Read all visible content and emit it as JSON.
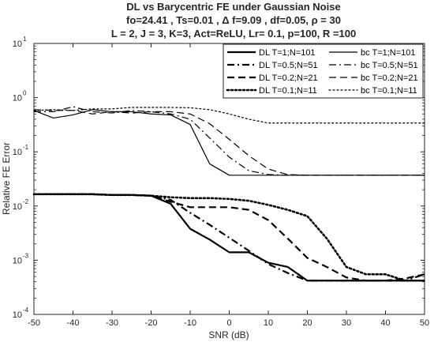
{
  "chart_data": {
    "type": "line",
    "title_lines": [
      "DL vs Barycentric FE under Gaussian Noise",
      "fo=24.41 , Ts=0.01 , Δ f=9.09 , df=0.05, ρ = 30",
      "L = 2, J = 3, K=3, Act=ReLU, Lr= 0.1, p=100, R =100"
    ],
    "xlabel": "SNR (dB)",
    "ylabel": "Relative FE Error",
    "xlim": [
      -50,
      50
    ],
    "ylim": [
      0.0001,
      10
    ],
    "yscale": "log",
    "grid": false,
    "legend_placement": "top-right",
    "x_tick_labels": [
      "-50",
      "-40",
      "-30",
      "-20",
      "-10",
      "0",
      "10",
      "20",
      "30",
      "40",
      "50"
    ],
    "y_tick_labels": [
      {
        "base": "10",
        "exp": "1"
      },
      {
        "base": "10",
        "exp": "0"
      },
      {
        "base": "10",
        "exp": "-1"
      },
      {
        "base": "10",
        "exp": "-2"
      },
      {
        "base": "10",
        "exp": "-3"
      },
      {
        "base": "10",
        "exp": "-4"
      }
    ],
    "x": [
      -50,
      -45,
      -40,
      -35,
      -30,
      -25,
      -20,
      -15,
      -10,
      -5,
      0,
      5,
      10,
      15,
      20,
      25,
      30,
      35,
      40,
      45,
      50
    ],
    "series": [
      {
        "name": "DL T=1;N=101",
        "style": "solid",
        "width": 2.2,
        "color": "#000000",
        "values": [
          0.0165,
          0.0165,
          0.0165,
          0.0165,
          0.016,
          0.016,
          0.0155,
          0.011,
          0.0038,
          0.0024,
          0.0014,
          0.0014,
          0.0009,
          0.00075,
          0.00042,
          0.00042,
          0.00042,
          0.00042,
          0.00042,
          0.00042,
          0.00042
        ]
      },
      {
        "name": "DL T=0.5;N=51",
        "style": "dashdot",
        "width": 2.2,
        "color": "#000000",
        "values": [
          0.0165,
          0.0165,
          0.0165,
          0.0165,
          0.016,
          0.016,
          0.0155,
          0.013,
          0.0075,
          0.0045,
          0.0026,
          0.0015,
          0.00085,
          0.00058,
          0.00042,
          0.00042,
          0.00042,
          0.00042,
          0.00042,
          0.00042,
          0.00055
        ]
      },
      {
        "name": "DL T=0.2;N=21",
        "style": "dashed",
        "width": 2.2,
        "color": "#000000",
        "values": [
          0.0165,
          0.0165,
          0.0165,
          0.0165,
          0.016,
          0.016,
          0.0155,
          0.012,
          0.0095,
          0.0095,
          0.0095,
          0.0085,
          0.0055,
          0.0025,
          0.0011,
          0.00075,
          0.00048,
          0.00042,
          0.00042,
          0.00046,
          0.00055
        ]
      },
      {
        "name": "DL T=0.1;N=11",
        "style": "dotted",
        "width": 2.6,
        "color": "#000000",
        "values": [
          0.0165,
          0.0165,
          0.0165,
          0.0165,
          0.016,
          0.016,
          0.0155,
          0.0145,
          0.014,
          0.014,
          0.0135,
          0.0125,
          0.0105,
          0.0085,
          0.0065,
          0.0025,
          0.00075,
          0.00055,
          0.00055,
          0.00042,
          0.00042
        ]
      },
      {
        "name": "bc T=1;N=101",
        "style": "solid",
        "width": 1.2,
        "color": "#000000",
        "values": [
          0.58,
          0.42,
          0.48,
          0.6,
          0.55,
          0.55,
          0.5,
          0.48,
          0.32,
          0.06,
          0.037,
          0.037,
          0.037,
          0.037,
          0.037,
          0.037,
          0.037,
          0.037,
          0.037,
          0.037,
          0.037
        ]
      },
      {
        "name": "bc T=0.5;N=51",
        "style": "dashdot",
        "width": 1.2,
        "color": "#000000",
        "values": [
          0.55,
          0.55,
          0.68,
          0.55,
          0.52,
          0.58,
          0.55,
          0.5,
          0.4,
          0.18,
          0.08,
          0.045,
          0.038,
          0.037,
          0.037,
          0.037,
          0.037,
          0.037,
          0.037,
          0.037,
          0.037
        ]
      },
      {
        "name": "bc T=0.2;N=21",
        "style": "dashed",
        "width": 1.2,
        "color": "#000000",
        "values": [
          0.6,
          0.58,
          0.58,
          0.5,
          0.55,
          0.52,
          0.55,
          0.55,
          0.5,
          0.33,
          0.17,
          0.085,
          0.048,
          0.038,
          0.037,
          0.037,
          0.037,
          0.037,
          0.037,
          0.037,
          0.037
        ]
      },
      {
        "name": "bc T=0.1;N=11",
        "style": "dotted",
        "width": 1.2,
        "color": "#000000",
        "values": [
          0.58,
          0.6,
          0.58,
          0.62,
          0.62,
          0.66,
          0.66,
          0.66,
          0.65,
          0.6,
          0.5,
          0.4,
          0.34,
          0.34,
          0.34,
          0.34,
          0.34,
          0.34,
          0.34,
          0.34,
          0.34
        ]
      }
    ]
  }
}
